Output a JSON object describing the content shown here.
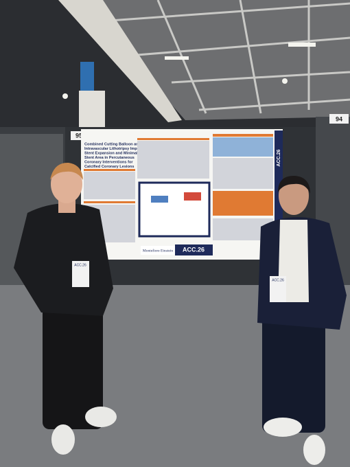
{
  "signs": {
    "left": "95",
    "right": "94"
  },
  "poster": {
    "title_lines": [
      "Combined Cutting Balloon and",
      "Intravascular Lithotripsy Improves",
      "Stent Expansion and Minimal",
      "Stent Area in Percutaneous",
      "Coronary Interventions for",
      "Calcified Coronary Lesions"
    ],
    "logo": "Montefiore Einstein",
    "brand": "ACC.26",
    "side_brand": "ACC.26"
  },
  "badges": [
    "ACC.26",
    "ACC.26"
  ]
}
